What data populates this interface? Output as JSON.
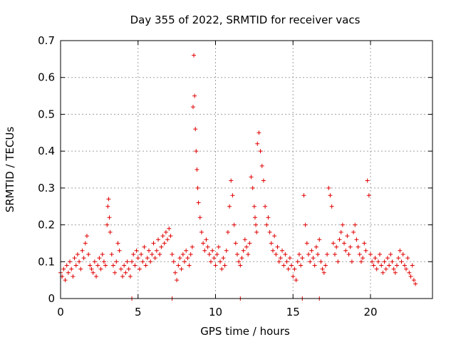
{
  "chart_data": {
    "type": "scatter",
    "title": "Day 355 of 2022, SRMTID for receiver vacs",
    "xlabel": "GPS time / hours",
    "ylabel": "SRMTID / TECUs",
    "xlim": [
      0,
      24
    ],
    "ylim": [
      0,
      0.7
    ],
    "xticks": [
      0,
      5,
      10,
      15,
      20
    ],
    "xtick_labels": [
      "0",
      "5",
      "10",
      "15",
      "20"
    ],
    "yticks": [
      0,
      0.1,
      0.2,
      0.3,
      0.4,
      0.5,
      0.6,
      0.7
    ],
    "ytick_labels": [
      "0",
      "0.1",
      "0.2",
      "0.3",
      "0.4",
      "0.5",
      "0.6",
      "0.7"
    ],
    "grid": true,
    "marker": "+",
    "series": [
      {
        "name": "vacs",
        "color": "#e00000",
        "x": [
          0.0,
          0.1,
          0.2,
          0.3,
          0.4,
          0.5,
          0.6,
          0.7,
          0.8,
          0.9,
          1.0,
          1.1,
          1.2,
          1.3,
          1.4,
          1.5,
          1.6,
          1.7,
          1.8,
          1.9,
          2.0,
          2.1,
          2.2,
          2.3,
          2.4,
          2.5,
          2.6,
          2.7,
          2.8,
          2.9,
          3.0,
          3.05,
          3.1,
          3.15,
          3.2,
          3.3,
          3.4,
          3.5,
          3.6,
          3.7,
          3.8,
          3.9,
          4.0,
          4.1,
          4.2,
          4.3,
          4.4,
          4.5,
          4.6,
          4.7,
          4.8,
          4.9,
          5.0,
          5.1,
          5.2,
          5.3,
          5.4,
          5.5,
          5.6,
          5.7,
          5.8,
          5.9,
          6.0,
          6.1,
          6.2,
          6.3,
          6.4,
          6.5,
          6.6,
          6.7,
          6.8,
          6.9,
          7.0,
          7.1,
          7.2,
          7.3,
          7.4,
          7.5,
          7.6,
          7.7,
          7.8,
          7.9,
          8.0,
          8.1,
          8.2,
          8.3,
          8.4,
          8.5,
          8.55,
          8.6,
          8.65,
          8.7,
          8.75,
          8.8,
          8.85,
          8.9,
          9.0,
          9.1,
          9.2,
          9.3,
          9.4,
          9.5,
          9.6,
          9.7,
          9.8,
          9.9,
          10.0,
          10.1,
          10.2,
          10.3,
          10.4,
          10.5,
          10.6,
          10.7,
          10.8,
          10.9,
          11.0,
          11.1,
          11.2,
          11.3,
          11.4,
          11.5,
          11.6,
          11.7,
          11.8,
          11.9,
          12.0,
          12.1,
          12.2,
          12.3,
          12.4,
          12.5,
          12.55,
          12.6,
          12.65,
          12.7,
          12.8,
          12.9,
          13.0,
          13.1,
          13.2,
          13.3,
          13.4,
          13.5,
          13.6,
          13.7,
          13.8,
          13.9,
          14.0,
          14.1,
          14.2,
          14.3,
          14.4,
          14.5,
          14.6,
          14.7,
          14.8,
          14.9,
          15.0,
          15.1,
          15.2,
          15.3,
          15.4,
          15.5,
          15.6,
          15.7,
          15.8,
          15.9,
          16.0,
          16.1,
          16.2,
          16.3,
          16.4,
          16.5,
          16.6,
          16.7,
          16.8,
          16.9,
          17.0,
          17.1,
          17.2,
          17.3,
          17.4,
          17.5,
          17.6,
          17.7,
          17.8,
          17.9,
          18.0,
          18.1,
          18.2,
          18.3,
          18.4,
          18.5,
          18.6,
          18.7,
          18.8,
          18.9,
          19.0,
          19.1,
          19.2,
          19.3,
          19.4,
          19.5,
          19.6,
          19.7,
          19.8,
          19.9,
          20.0,
          20.1,
          20.2,
          20.3,
          20.4,
          20.5,
          20.6,
          20.7,
          20.8,
          20.9,
          21.0,
          21.1,
          21.2,
          21.3,
          21.4,
          21.5,
          21.6,
          21.7,
          21.8,
          21.9,
          22.0,
          22.1,
          22.2,
          22.3,
          22.4,
          22.5,
          22.6,
          22.7,
          22.8,
          22.9,
          4.6,
          7.2,
          11.6,
          15.6,
          16.7
        ],
        "y": [
          0.07,
          0.06,
          0.08,
          0.05,
          0.09,
          0.07,
          0.1,
          0.08,
          0.06,
          0.11,
          0.09,
          0.12,
          0.1,
          0.08,
          0.13,
          0.11,
          0.15,
          0.17,
          0.12,
          0.09,
          0.08,
          0.07,
          0.1,
          0.06,
          0.09,
          0.11,
          0.08,
          0.12,
          0.1,
          0.09,
          0.2,
          0.25,
          0.27,
          0.22,
          0.18,
          0.12,
          0.09,
          0.07,
          0.1,
          0.15,
          0.13,
          0.08,
          0.06,
          0.09,
          0.07,
          0.1,
          0.08,
          0.06,
          0.1,
          0.12,
          0.09,
          0.13,
          0.11,
          0.08,
          0.12,
          0.1,
          0.14,
          0.09,
          0.11,
          0.13,
          0.1,
          0.12,
          0.15,
          0.11,
          0.13,
          0.16,
          0.12,
          0.14,
          0.17,
          0.15,
          0.18,
          0.16,
          0.19,
          0.17,
          0.12,
          0.1,
          0.07,
          0.05,
          0.09,
          0.11,
          0.08,
          0.12,
          0.1,
          0.13,
          0.11,
          0.09,
          0.12,
          0.14,
          0.52,
          0.66,
          0.55,
          0.46,
          0.4,
          0.35,
          0.3,
          0.26,
          0.22,
          0.18,
          0.15,
          0.13,
          0.16,
          0.14,
          0.12,
          0.1,
          0.13,
          0.11,
          0.09,
          0.12,
          0.14,
          0.1,
          0.08,
          0.11,
          0.09,
          0.13,
          0.18,
          0.25,
          0.32,
          0.28,
          0.2,
          0.15,
          0.12,
          0.1,
          0.09,
          0.11,
          0.13,
          0.16,
          0.14,
          0.12,
          0.15,
          0.33,
          0.3,
          0.25,
          0.22,
          0.2,
          0.18,
          0.42,
          0.45,
          0.4,
          0.36,
          0.32,
          0.25,
          0.2,
          0.22,
          0.18,
          0.15,
          0.13,
          0.17,
          0.12,
          0.14,
          0.1,
          0.11,
          0.13,
          0.09,
          0.12,
          0.1,
          0.08,
          0.11,
          0.09,
          0.06,
          0.08,
          0.05,
          0.1,
          0.12,
          0.09,
          0.11,
          0.28,
          0.2,
          0.15,
          0.12,
          0.1,
          0.13,
          0.11,
          0.09,
          0.14,
          0.12,
          0.16,
          0.1,
          0.08,
          0.07,
          0.09,
          0.12,
          0.3,
          0.28,
          0.25,
          0.15,
          0.12,
          0.14,
          0.1,
          0.16,
          0.18,
          0.2,
          0.15,
          0.13,
          0.17,
          0.12,
          0.14,
          0.1,
          0.18,
          0.2,
          0.16,
          0.14,
          0.12,
          0.1,
          0.11,
          0.15,
          0.13,
          0.32,
          0.28,
          0.12,
          0.1,
          0.09,
          0.11,
          0.08,
          0.1,
          0.12,
          0.09,
          0.07,
          0.1,
          0.08,
          0.11,
          0.09,
          0.12,
          0.1,
          0.08,
          0.07,
          0.09,
          0.11,
          0.13,
          0.1,
          0.12,
          0.09,
          0.08,
          0.11,
          0.07,
          0.06,
          0.09,
          0.05,
          0.04,
          0.0,
          0.0,
          0.0,
          0.0,
          0.0
        ]
      }
    ]
  }
}
